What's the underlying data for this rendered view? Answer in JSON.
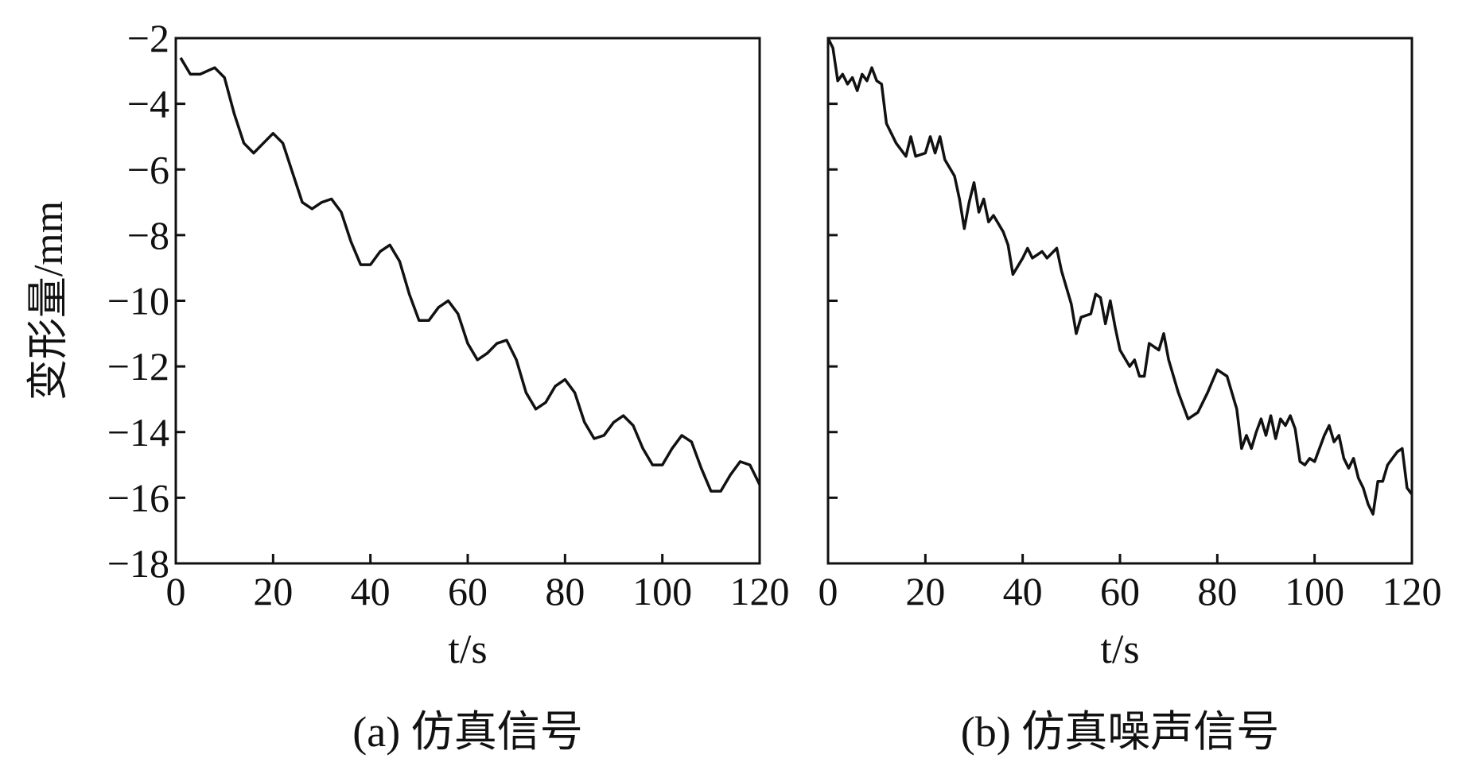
{
  "chart_data": [
    {
      "type": "line",
      "caption": "(a) 仿真信号",
      "xlabel": "t/s",
      "ylabel": "变形量/mm",
      "xlim": [
        0,
        120
      ],
      "ylim": [
        -18,
        -2
      ],
      "xticks": [
        0,
        20,
        40,
        60,
        80,
        100,
        120
      ],
      "yticks": [
        {
          "value": -18,
          "label": "−18"
        },
        {
          "value": -16,
          "label": "−16"
        },
        {
          "value": -14,
          "label": "−14"
        },
        {
          "value": -12,
          "label": "−12"
        },
        {
          "value": -10,
          "label": "−10"
        },
        {
          "value": -8,
          "label": "−8"
        },
        {
          "value": -6,
          "label": "−6"
        },
        {
          "value": -4,
          "label": "−4"
        },
        {
          "value": -2,
          "label": "−2"
        }
      ],
      "color": "#111111",
      "x": [
        1,
        3,
        5,
        8,
        10,
        12,
        14,
        16,
        18,
        20,
        22,
        24,
        26,
        28,
        30,
        32,
        34,
        36,
        38,
        40,
        42,
        44,
        46,
        48,
        50,
        52,
        54,
        56,
        58,
        60,
        62,
        64,
        66,
        68,
        70,
        72,
        74,
        76,
        78,
        80,
        82,
        84,
        86,
        88,
        90,
        92,
        94,
        96,
        98,
        100,
        102,
        104,
        106,
        108,
        110,
        112,
        114,
        116,
        118,
        120
      ],
      "values": [
        -2.6,
        -3.1,
        -3.1,
        -2.9,
        -3.2,
        -4.3,
        -5.2,
        -5.5,
        -5.2,
        -4.9,
        -5.2,
        -6.1,
        -7.0,
        -7.2,
        -7.0,
        -6.9,
        -7.3,
        -8.2,
        -8.9,
        -8.9,
        -8.5,
        -8.3,
        -8.8,
        -9.8,
        -10.6,
        -10.6,
        -10.2,
        -10.0,
        -10.4,
        -11.3,
        -11.8,
        -11.6,
        -11.3,
        -11.2,
        -11.8,
        -12.8,
        -13.3,
        -13.1,
        -12.6,
        -12.4,
        -12.8,
        -13.7,
        -14.2,
        -14.1,
        -13.7,
        -13.5,
        -13.8,
        -14.5,
        -15.0,
        -15.0,
        -14.5,
        -14.1,
        -14.3,
        -15.1,
        -15.8,
        -15.8,
        -15.3,
        -14.9,
        -15.0,
        -15.6
      ]
    },
    {
      "type": "line",
      "caption": "(b) 仿真噪声信号",
      "xlabel": "t/s",
      "xlim": [
        0,
        120
      ],
      "ylim": [
        -18,
        -2
      ],
      "xticks": [
        0,
        20,
        40,
        60,
        80,
        100,
        120
      ],
      "yticks": [
        -18,
        -16,
        -14,
        -12,
        -10,
        -8,
        -6,
        -4,
        -2
      ],
      "show_ytick_labels": false,
      "color": "#111111",
      "x": [
        0,
        1,
        2,
        3,
        4,
        5,
        6,
        7,
        8,
        9,
        10,
        11,
        12,
        14,
        16,
        17,
        18,
        20,
        21,
        22,
        23,
        24,
        26,
        27,
        28,
        29,
        30,
        31,
        32,
        33,
        34,
        36,
        37,
        38,
        40,
        41,
        42,
        44,
        45,
        47,
        48,
        50,
        51,
        52,
        54,
        55,
        56,
        57,
        58,
        59,
        60,
        62,
        63,
        64,
        65,
        66,
        68,
        69,
        70,
        72,
        74,
        76,
        78,
        80,
        82,
        84,
        85,
        86,
        87,
        88,
        89,
        90,
        91,
        92,
        93,
        94,
        95,
        96,
        97,
        98,
        99,
        100,
        102,
        103,
        104,
        105,
        106,
        107,
        108,
        109,
        110,
        111,
        112,
        113,
        114,
        115,
        116,
        117,
        118,
        119,
        120
      ],
      "values": [
        -2,
        -2.3,
        -3.3,
        -3.1,
        -3.4,
        -3.2,
        -3.6,
        -3.1,
        -3.3,
        -2.9,
        -3.3,
        -3.4,
        -4.6,
        -5.2,
        -5.6,
        -5.0,
        -5.6,
        -5.5,
        -5.0,
        -5.5,
        -5.0,
        -5.7,
        -6.2,
        -6.9,
        -7.8,
        -7.0,
        -6.4,
        -7.3,
        -6.9,
        -7.6,
        -7.4,
        -7.9,
        -8.3,
        -9.2,
        -8.7,
        -8.4,
        -8.7,
        -8.5,
        -8.7,
        -8.4,
        -9.1,
        -10.1,
        -11.0,
        -10.5,
        -10.4,
        -9.8,
        -9.9,
        -10.7,
        -10.0,
        -10.8,
        -11.5,
        -12.0,
        -11.8,
        -12.3,
        -12.3,
        -11.3,
        -11.5,
        -11.0,
        -11.8,
        -12.8,
        -13.6,
        -13.4,
        -12.8,
        -12.1,
        -12.3,
        -13.3,
        -14.5,
        -14.1,
        -14.5,
        -14.0,
        -13.6,
        -14.1,
        -13.5,
        -14.2,
        -13.6,
        -13.8,
        -13.5,
        -13.9,
        -14.9,
        -15.0,
        -14.8,
        -14.9,
        -14.1,
        -13.8,
        -14.3,
        -14.1,
        -14.8,
        -15.1,
        -14.8,
        -15.4,
        -15.7,
        -16.2,
        -16.5,
        -15.5,
        -15.5,
        -15.0,
        -14.8,
        -14.6,
        -14.5,
        -15.7,
        -15.9
      ]
    }
  ]
}
